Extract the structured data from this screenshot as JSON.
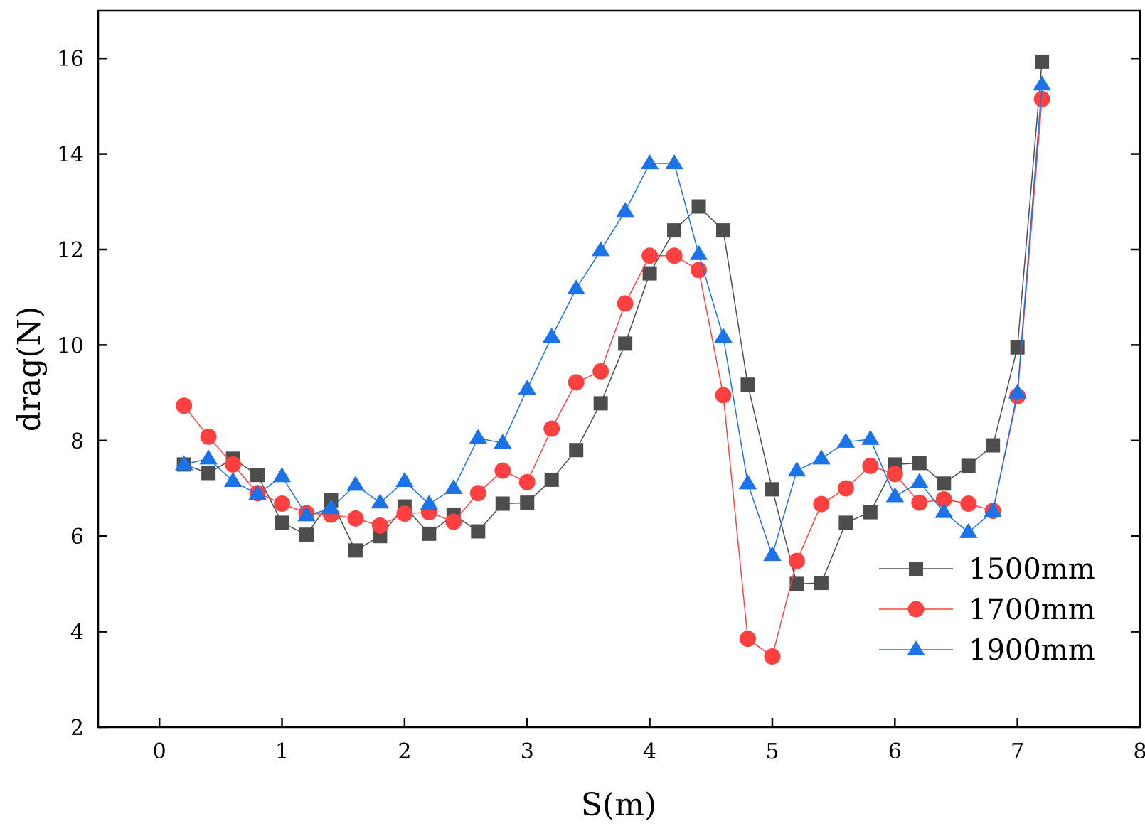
{
  "chart_data": {
    "type": "line",
    "title": "",
    "xlabel": "S(m)",
    "ylabel": "drag(N)",
    "xlim": [
      -0.5,
      8
    ],
    "ylim": [
      2,
      17
    ],
    "xticks": [
      0,
      1,
      2,
      3,
      4,
      5,
      6,
      7,
      8
    ],
    "yticks": [
      2,
      4,
      6,
      8,
      10,
      12,
      14,
      16
    ],
    "grid": false,
    "legend_position": "bottom-right",
    "x": [
      0.2,
      0.4,
      0.6,
      0.8,
      1.0,
      1.2,
      1.4,
      1.6,
      1.8,
      2.0,
      2.2,
      2.4,
      2.6,
      2.8,
      3.0,
      3.2,
      3.4,
      3.6,
      3.8,
      4.0,
      4.2,
      4.4,
      4.6,
      4.8,
      5.0,
      5.2,
      5.4,
      5.6,
      5.8,
      6.0,
      6.2,
      6.4,
      6.6,
      6.8,
      7.0,
      7.2
    ],
    "series": [
      {
        "name": "1500mm",
        "color": "#4d4d4d",
        "marker": "square",
        "values": [
          7.5,
          7.32,
          7.62,
          7.28,
          6.28,
          6.03,
          6.75,
          5.7,
          6.0,
          6.62,
          6.05,
          6.45,
          6.1,
          6.68,
          6.7,
          7.18,
          7.8,
          8.78,
          10.03,
          11.5,
          12.4,
          12.9,
          12.4,
          9.17,
          6.98,
          5.0,
          5.02,
          6.28,
          6.5,
          7.5,
          7.53,
          7.1,
          7.47,
          7.9,
          9.95,
          15.93
        ]
      },
      {
        "name": "1700mm",
        "color": "#ff4040",
        "marker": "circle",
        "values": [
          8.73,
          8.08,
          7.5,
          6.9,
          6.68,
          6.48,
          6.45,
          6.37,
          6.22,
          6.47,
          6.5,
          6.3,
          6.9,
          7.37,
          7.13,
          8.25,
          9.22,
          9.45,
          10.87,
          11.87,
          11.87,
          11.57,
          8.95,
          3.85,
          3.48,
          5.48,
          6.67,
          7.0,
          7.47,
          7.3,
          6.7,
          6.77,
          6.68,
          6.53,
          8.93,
          15.15
        ]
      },
      {
        "name": "1900mm",
        "color": "#1a73e8",
        "marker": "triangle",
        "values": [
          7.5,
          7.62,
          7.15,
          6.88,
          7.25,
          6.43,
          6.58,
          7.07,
          6.7,
          7.15,
          6.67,
          7.0,
          8.05,
          7.95,
          9.08,
          10.17,
          11.18,
          11.98,
          12.8,
          13.8,
          13.8,
          11.9,
          10.17,
          7.1,
          5.6,
          7.37,
          7.62,
          7.97,
          8.03,
          6.83,
          7.13,
          6.5,
          6.08,
          6.52,
          9.0,
          15.45
        ]
      }
    ]
  }
}
